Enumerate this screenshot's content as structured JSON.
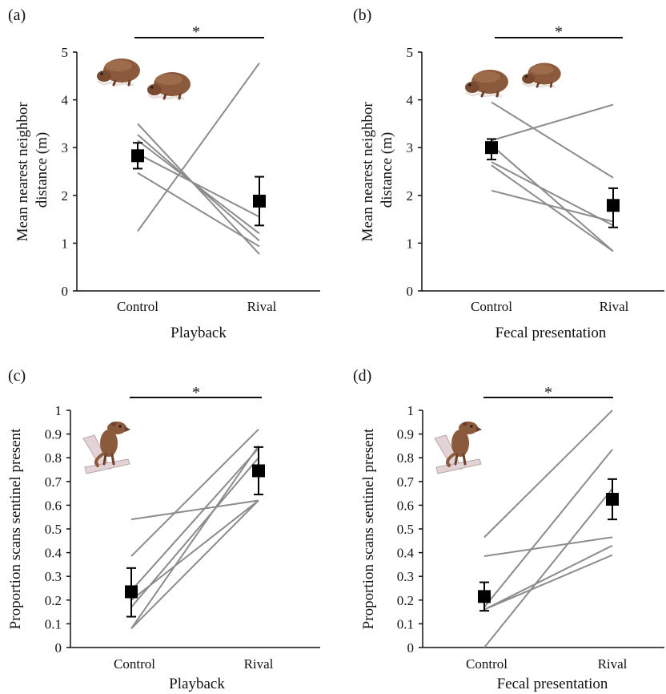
{
  "colors": {
    "line": "#8c8c8c",
    "mean": "#000000",
    "axis": "#111111",
    "mongoose_fur": "#8b5a3c",
    "branch": "#e3d3d6"
  },
  "icons": [
    "mongoose-foraging-icon",
    "mongoose-sentinel-icon"
  ],
  "chart_data": [
    {
      "type": "line",
      "panel_label": "(a)",
      "categories": [
        "Control",
        "Rival"
      ],
      "xlabel": "Playback",
      "ylabel": "Mean nearest neighbor distance (m)",
      "ylim": [
        0,
        5
      ],
      "yticks": [
        "0",
        "1",
        "2",
        "3",
        "4",
        "5"
      ],
      "significance": "*",
      "icon": "foraging",
      "series": [
        {
          "values": [
            3.5,
            0.77
          ]
        },
        {
          "values": [
            3.27,
            1.05
          ]
        },
        {
          "values": [
            3.15,
            1.2
          ]
        },
        {
          "values": [
            2.87,
            1.55
          ]
        },
        {
          "values": [
            2.47,
            0.93
          ]
        },
        {
          "values": [
            1.25,
            4.77
          ]
        }
      ],
      "mean": [
        2.83,
        1.88
      ],
      "error": [
        [
          2.56,
          3.1
        ],
        [
          1.37,
          2.39
        ]
      ]
    },
    {
      "type": "line",
      "panel_label": "(b)",
      "categories": [
        "Control",
        "Rival"
      ],
      "xlabel": "Fecal presentation",
      "ylabel": "Mean nearest neighbor distance (m)",
      "ylim": [
        0,
        5
      ],
      "yticks": [
        "0",
        "1",
        "2",
        "3",
        "4",
        "5"
      ],
      "significance": "*",
      "icon": "foraging",
      "series": [
        {
          "values": [
            3.95,
            2.37
          ]
        },
        {
          "values": [
            3.15,
            3.9
          ]
        },
        {
          "values": [
            3.05,
            0.83
          ]
        },
        {
          "values": [
            2.7,
            1.37
          ]
        },
        {
          "values": [
            2.63,
            0.83
          ]
        },
        {
          "values": [
            2.1,
            1.45
          ]
        }
      ],
      "mean": [
        3.0,
        1.79
      ],
      "error": [
        [
          2.75,
          3.18
        ],
        [
          1.33,
          2.15
        ]
      ]
    },
    {
      "type": "line",
      "panel_label": "(c)",
      "categories": [
        "Control",
        "Rival"
      ],
      "xlabel": "Playback",
      "ylabel": "Proportion scans sentinel present",
      "ylim": [
        0,
        1
      ],
      "yticks": [
        "0",
        "0.1",
        "0.2",
        "0.3",
        "0.4",
        "0.5",
        "0.6",
        "0.7",
        "0.8",
        "0.9",
        "1"
      ],
      "significance": "*",
      "icon": "sentinel",
      "series": [
        {
          "values": [
            0.54,
            0.62
          ]
        },
        {
          "values": [
            0.385,
            0.92
          ]
        },
        {
          "values": [
            0.24,
            0.84
          ]
        },
        {
          "values": [
            0.2,
            0.62
          ]
        },
        {
          "values": [
            0.17,
            0.8
          ]
        },
        {
          "values": [
            0.08,
            0.85
          ]
        },
        {
          "values": [
            0.08,
            0.62
          ]
        }
      ],
      "mean": [
        0.235,
        0.745
      ],
      "error": [
        [
          0.13,
          0.335
        ],
        [
          0.645,
          0.845
        ]
      ]
    },
    {
      "type": "line",
      "panel_label": "(d)",
      "categories": [
        "Control",
        "Rival"
      ],
      "xlabel": "Fecal presentation",
      "ylabel": "Proportion scans sentinel present",
      "ylim": [
        0,
        1
      ],
      "yticks": [
        "0",
        "0.1",
        "0.2",
        "0.3",
        "0.4",
        "0.5",
        "0.6",
        "0.7",
        "0.8",
        "0.9",
        "1"
      ],
      "significance": "*",
      "icon": "sentinel",
      "series": [
        {
          "values": [
            0.465,
            1.0
          ]
        },
        {
          "values": [
            0.385,
            0.465
          ]
        },
        {
          "values": [
            0.17,
            0.835
          ]
        },
        {
          "values": [
            0.16,
            0.43
          ]
        },
        {
          "values": [
            0.16,
            0.39
          ]
        },
        {
          "values": [
            0.0,
            0.67
          ]
        }
      ],
      "mean": [
        0.215,
        0.625
      ],
      "error": [
        [
          0.155,
          0.275
        ],
        [
          0.54,
          0.71
        ]
      ]
    }
  ]
}
